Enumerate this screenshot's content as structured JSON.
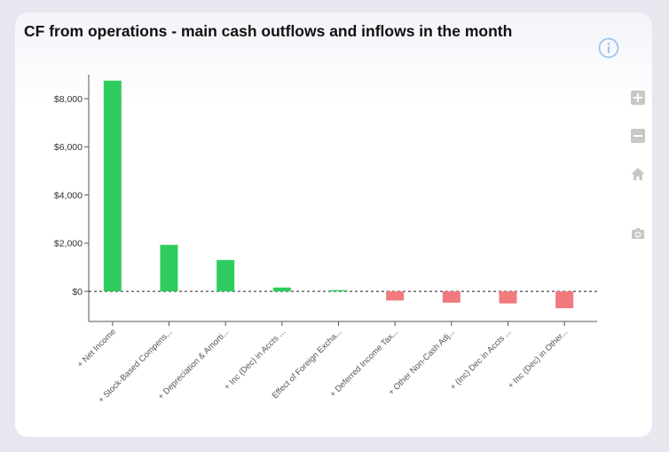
{
  "title": "CF from operations - main cash outflows and inflows in the month",
  "icons": {
    "info": "info-icon",
    "zoom_in": "plus-square-icon",
    "zoom_out": "minus-square-icon",
    "reset": "home-icon",
    "download": "camera-icon"
  },
  "colors": {
    "positive": "#2ecc5e",
    "negative": "#f07a7e",
    "info_icon": "#9ec3ec",
    "toolbar_icon": "#c7c7c7"
  },
  "chart_data": {
    "type": "bar",
    "title": "CF from operations - main cash outflows and inflows in the month",
    "xlabel": "",
    "ylabel": "",
    "ylim": [
      -1250,
      9000
    ],
    "yticks": [
      0,
      2000,
      4000,
      6000,
      8000
    ],
    "ytick_labels": [
      "$0",
      "$2,000",
      "$4,000",
      "$6,000",
      "$8,000"
    ],
    "zero_line": "dashed",
    "grid": false,
    "categories": [
      "+ Net Income",
      "+ Stock-Based Compens...",
      "+ Depreciation & Amorti...",
      "+ Inc (Dec) in Accts ...",
      "Effect of Foreign Excha...",
      "+ Deferred Income Tax...",
      "+ Other Non-Cash Adj...",
      "+ (Inc) Dec in Accts ...",
      "+ Inc (Dec) in Other..."
    ],
    "values": [
      8750,
      1930,
      1300,
      160,
      50,
      -380,
      -470,
      -500,
      -700
    ]
  }
}
